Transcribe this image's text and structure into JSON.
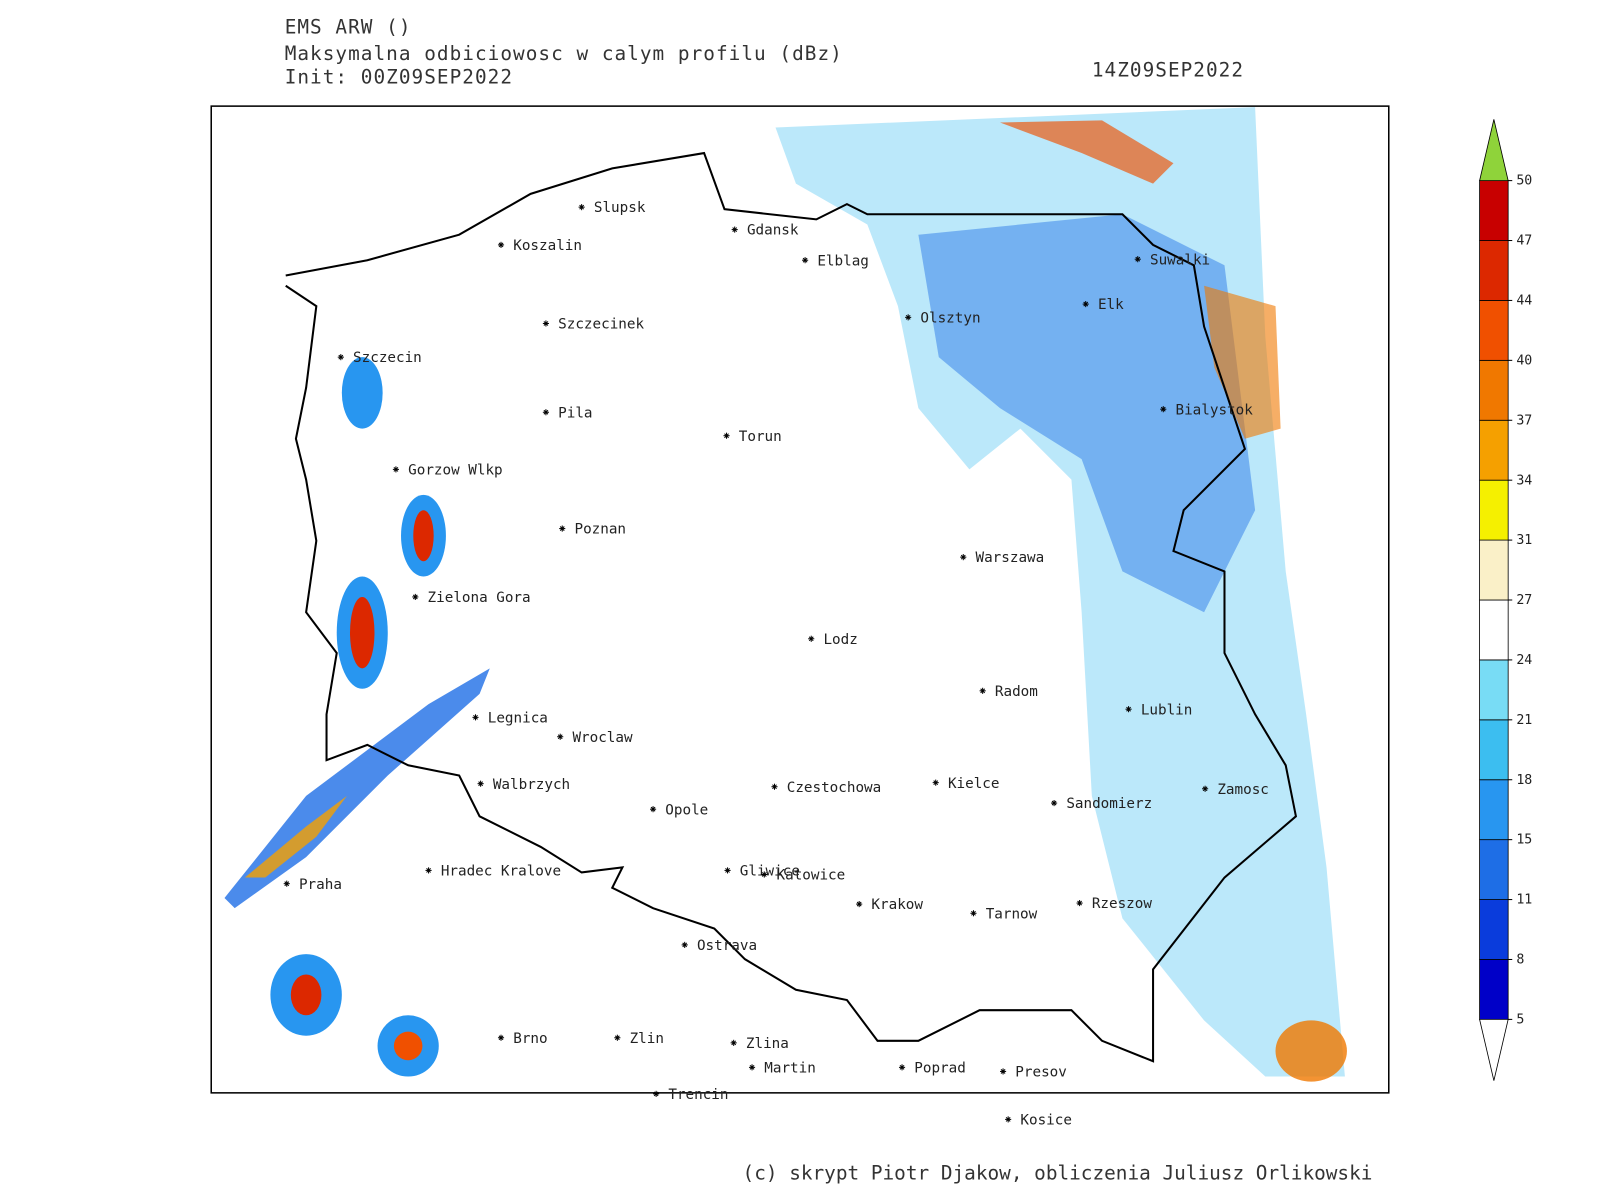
{
  "header": {
    "title": "EMS ARW ()",
    "subtitle": "Maksymalna odbiciowosc w calym profilu (dBz)",
    "init": "Init: 00Z09SEP2022",
    "valid": "14Z09SEP2022"
  },
  "colorbar": {
    "levels": [
      5,
      8,
      11,
      15,
      18,
      21,
      24,
      27,
      31,
      34,
      37,
      40,
      44,
      47,
      50
    ],
    "colors": [
      "#0000c8",
      "#0a3cdc",
      "#1e6ee6",
      "#2896f0",
      "#3cbef0",
      "#78dcf5",
      "#ffffff",
      "#faf0c8",
      "#f5f000",
      "#f5a000",
      "#f07800",
      "#f05000",
      "#dc2800",
      "#c80000"
    ],
    "below_color": "#ffffff",
    "above_color": "#8fd33a"
  },
  "cities": [
    "Slupsk",
    "Koszalin",
    "Gdansk",
    "Elblag",
    "Suwalki",
    "Elk",
    "Szczecinek",
    "Olsztyn",
    "Szczecin",
    "Bialystok",
    "Pila",
    "Torun",
    "Gorzow Wlkp",
    "Poznan",
    "Warszawa",
    "Zielona Gora",
    "Lodz",
    "Radom",
    "Lublin",
    "Legnica",
    "Wroclaw",
    "Walbrzych",
    "Czestochowa",
    "Kielce",
    "Zamosc",
    "Sandomierz",
    "Opole",
    "Hradec Kralove",
    "Gliwice",
    "Katowice",
    "Praha",
    "Krakow",
    "Tarnow",
    "Rzeszow",
    "Ostrava",
    "Brno",
    "Zlin",
    "Zlina",
    "Martin",
    "Poprad",
    "Presov",
    "Trencin",
    "Kosice"
  ],
  "credit": "(c) skrypt Piotr Djakow, obliczenia Juliusz Orlikowski"
}
